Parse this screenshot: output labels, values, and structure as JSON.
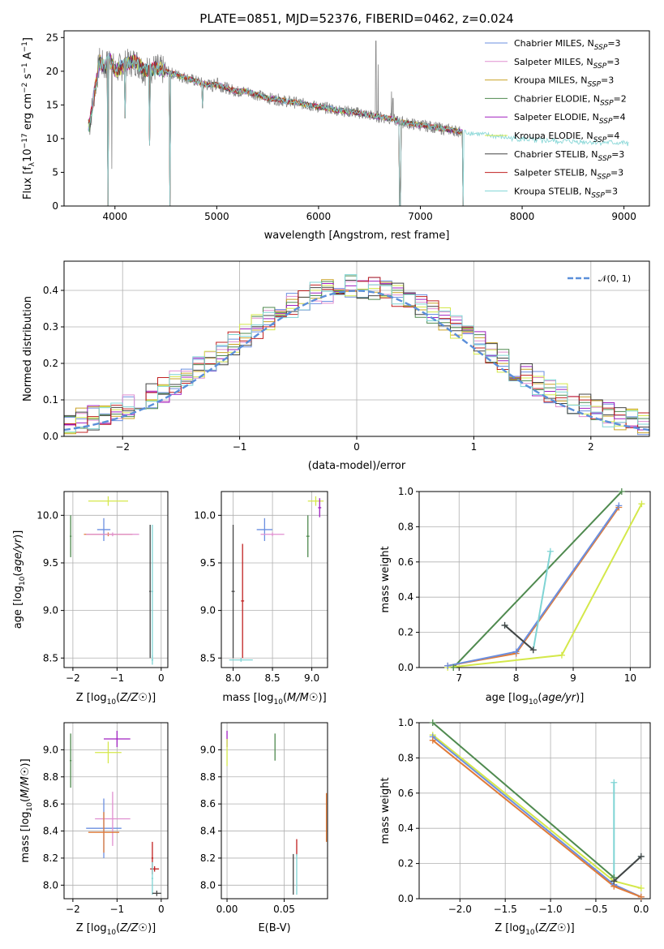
{
  "chart_data": [
    {
      "type": "line",
      "id": "spectrum",
      "title": "PLATE=0851, MJD=52376, FIBERID=0462, z=0.024",
      "xlabel": "wavelength [Angstrom, rest frame]",
      "ylabel_parts": [
        "Flux [f",
        "λ",
        "10",
        "−17",
        " erg cm",
        "−2",
        " s",
        "−1",
        " A",
        "−1",
        "]"
      ],
      "xlim": [
        3500,
        9250
      ],
      "ylim": [
        0,
        26
      ],
      "xticks": [
        4000,
        5000,
        6000,
        7000,
        8000,
        9000
      ],
      "yticks": [
        0,
        5,
        10,
        15,
        20,
        25
      ],
      "grid": false,
      "legend_position": "top-right",
      "series": [
        {
          "name": "Chabrier MILES, N",
          "sub": "SSP",
          "suffix": "=3",
          "color": "#6b8fe0",
          "range": [
            3740,
            7420
          ]
        },
        {
          "name": "Salpeter MILES, N",
          "sub": "SSP",
          "suffix": "=3",
          "color": "#e08fd0",
          "range": [
            3740,
            7420
          ]
        },
        {
          "name": "Kroupa MILES, N",
          "sub": "SSP",
          "suffix": "=3",
          "color": "#c9a227",
          "range": [
            3740,
            7420
          ]
        },
        {
          "name": "Chabrier ELODIE, N",
          "sub": "SSP",
          "suffix": "=2",
          "color": "#4f8a4f",
          "range": [
            3740,
            7420
          ]
        },
        {
          "name": "Salpeter ELODIE, N",
          "sub": "SSP",
          "suffix": "=4",
          "color": "#a020c0",
          "range": [
            3740,
            7420
          ]
        },
        {
          "name": "Kroupa ELODIE, N",
          "sub": "SSP",
          "suffix": "=4",
          "color": "#d4e84a",
          "range": [
            3740,
            7420
          ]
        },
        {
          "name": "Chabrier STELIB, N",
          "sub": "SSP",
          "suffix": "=3",
          "color": "#444444",
          "range": [
            3740,
            7420
          ]
        },
        {
          "name": "Salpeter STELIB, N",
          "sub": "SSP",
          "suffix": "=3",
          "color": "#c02020",
          "range": [
            3740,
            7420
          ]
        },
        {
          "name": "Kroupa STELIB, N",
          "sub": "SSP",
          "suffix": "=3",
          "color": "#7fd4d4",
          "range": [
            3740,
            9050
          ]
        }
      ],
      "model_continuum": [
        [
          3750,
          12
        ],
        [
          3800,
          17
        ],
        [
          3850,
          21.5
        ],
        [
          3900,
          20.5
        ],
        [
          3950,
          22
        ],
        [
          4000,
          20
        ],
        [
          4100,
          21
        ],
        [
          4200,
          21.5
        ],
        [
          4300,
          20
        ],
        [
          4400,
          20.5
        ],
        [
          4500,
          20
        ],
        [
          4600,
          19.5
        ],
        [
          4700,
          19
        ],
        [
          4800,
          18.5
        ],
        [
          4900,
          18
        ],
        [
          5000,
          18
        ],
        [
          5100,
          17.5
        ],
        [
          5200,
          17
        ],
        [
          5300,
          17
        ],
        [
          5400,
          16.5
        ],
        [
          5500,
          16
        ],
        [
          5600,
          15.8
        ],
        [
          5700,
          15.5
        ],
        [
          5800,
          15.3
        ],
        [
          5900,
          15
        ],
        [
          6000,
          14.7
        ],
        [
          6100,
          14.5
        ],
        [
          6200,
          14.2
        ],
        [
          6300,
          14
        ],
        [
          6400,
          13.8
        ],
        [
          6500,
          13.5
        ],
        [
          6600,
          13.2
        ],
        [
          6700,
          13
        ],
        [
          6800,
          12.5
        ],
        [
          6900,
          12.2
        ],
        [
          7000,
          12
        ],
        [
          7100,
          11.8
        ],
        [
          7200,
          11.5
        ],
        [
          7300,
          11.3
        ],
        [
          7400,
          11
        ],
        [
          7500,
          10.8
        ],
        [
          7600,
          10.6
        ],
        [
          7700,
          10.4
        ],
        [
          7800,
          10.2
        ],
        [
          7900,
          10
        ],
        [
          8000,
          9.9
        ],
        [
          8200,
          9.7
        ],
        [
          8400,
          9.6
        ],
        [
          8600,
          9.5
        ],
        [
          8800,
          9.4
        ],
        [
          9050,
          9.3
        ]
      ],
      "model_dips": [
        [
          3934,
          0
        ],
        [
          4102,
          13
        ],
        [
          4340,
          9
        ],
        [
          4540,
          0
        ],
        [
          4861,
          14.5
        ],
        [
          6800,
          0
        ],
        [
          7420,
          0
        ]
      ],
      "data_spikes": [
        [
          3932,
          2
        ],
        [
          3968,
          5.5
        ],
        [
          6563,
          24.5
        ],
        [
          6584,
          21
        ],
        [
          5007,
          19
        ],
        [
          4959,
          17
        ],
        [
          6717,
          17
        ],
        [
          6731,
          16
        ]
      ]
    },
    {
      "type": "histogram",
      "id": "residuals",
      "xlabel": "(data-model)/error",
      "ylabel": "Normed distribution",
      "xlim": [
        -2.5,
        2.5
      ],
      "ylim": [
        0,
        0.48
      ],
      "xticks": [
        -2,
        -1,
        0,
        1,
        2
      ],
      "yticks": [
        0.0,
        0.1,
        0.2,
        0.3,
        0.4
      ],
      "grid": true,
      "legend_position": "top-right",
      "legend_label": "𝒩(0, 1)",
      "bin_width": 0.1,
      "bin_start": -2.5,
      "base_values": [
        0.04,
        0.06,
        0.07,
        0.09,
        0.08,
        0.1,
        0.09,
        0.11,
        0.1,
        0.12,
        0.14,
        0.16,
        0.17,
        0.19,
        0.2,
        0.23,
        0.22,
        0.27,
        0.3,
        0.29,
        0.28,
        0.3,
        0.33,
        0.34,
        0.36,
        0.35,
        0.37,
        0.39,
        0.38,
        0.4,
        0.41,
        0.39,
        0.42,
        0.4,
        0.38,
        0.4,
        0.37,
        0.39,
        0.35,
        0.32,
        0.3,
        0.28,
        0.27,
        0.24,
        0.21,
        0.2,
        0.19,
        0.17,
        0.15,
        0.14,
        0.12,
        0.11,
        0.1,
        0.09,
        0.08,
        0.07,
        0.06,
        0.05,
        0.04,
        0.03,
        0.04,
        0.03,
        0.02,
        0.02,
        0.03,
        0.02,
        0.01,
        0.02,
        0.01,
        0.01,
        0.01,
        0.01,
        0.01,
        0.01,
        0.01,
        0.01,
        0.01,
        0.01,
        0.01,
        0.01,
        0.01,
        0.01,
        0.01,
        0.01,
        0.01,
        0.01,
        0.01,
        0.01,
        0.01,
        0.01,
        0.01,
        0.01,
        0.01,
        0.01,
        0.01,
        0.01,
        0.01,
        0.01,
        0.01,
        0.01
      ],
      "normal_curve": {
        "mean": 0,
        "sigma": 1,
        "color": "#5b8fd9"
      }
    },
    {
      "type": "scatter",
      "id": "age-vs-Z",
      "xlabel": "Z [log10(Z/Z☉)]",
      "ylabel": "age  [log10(age/yr)]",
      "xlim": [
        -2.2,
        0.15
      ],
      "ylim": [
        8.4,
        10.25
      ],
      "xticks": [
        -2,
        -1,
        0
      ],
      "yticks": [
        8.5,
        9.0,
        9.5,
        10.0
      ],
      "grid": true,
      "points": [
        {
          "x": -1.2,
          "xerr": 0.45,
          "y": 10.15,
          "yerr": 0.05,
          "c": "#d4e84a"
        },
        {
          "x": -1.3,
          "xerr": 0.15,
          "y": 9.85,
          "yerr": 0.12,
          "c": "#6b8fe0"
        },
        {
          "x": -2.05,
          "xerr": 0.02,
          "y": 9.78,
          "yerr": 0.22,
          "c": "#4f8a4f"
        },
        {
          "x": -1.2,
          "xerr": 0.55,
          "y": 9.8,
          "yerr": 0.02,
          "c": "#e07b39"
        },
        {
          "x": -1.1,
          "xerr": 0.6,
          "y": 9.8,
          "yerr": 0.02,
          "c": "#e08fd0"
        },
        {
          "x": -0.2,
          "xerr": 0.02,
          "y": 8.48,
          "yerr": 0.05,
          "c": "#7fd4d4"
        },
        {
          "x": -0.25,
          "xerr": 0.02,
          "y": 9.2,
          "yerr": 0.7,
          "c": "#444444"
        },
        {
          "x": -0.2,
          "xerr": 0.02,
          "y": 9.2,
          "yerr": 0.7,
          "c": "#7fd4d4"
        }
      ]
    },
    {
      "type": "scatter",
      "id": "age-vs-mass",
      "xlabel": "mass [log10(M/M☉)]",
      "ylabel": "",
      "xlim": [
        7.85,
        9.2
      ],
      "ylim": [
        8.4,
        10.25
      ],
      "xticks": [
        8.0,
        8.5,
        9.0
      ],
      "yticks": [
        8.5,
        9.0,
        9.5,
        10.0
      ],
      "grid": true,
      "points": [
        {
          "x": 9.05,
          "xerr": 0.1,
          "y": 10.15,
          "yerr": 0.05,
          "c": "#d4e84a"
        },
        {
          "x": 9.1,
          "xerr": 0.02,
          "y": 10.08,
          "yerr": 0.1,
          "c": "#a020c0"
        },
        {
          "x": 8.4,
          "xerr": 0.1,
          "y": 9.85,
          "yerr": 0.12,
          "c": "#6b8fe0"
        },
        {
          "x": 8.5,
          "xerr": 0.15,
          "y": 9.8,
          "yerr": 0.02,
          "c": "#e08fd0"
        },
        {
          "x": 8.95,
          "xerr": 0.02,
          "y": 9.78,
          "yerr": 0.22,
          "c": "#4f8a4f"
        },
        {
          "x": 8.0,
          "xerr": 0.02,
          "y": 9.2,
          "yerr": 0.7,
          "c": "#444444"
        },
        {
          "x": 8.12,
          "xerr": 0.02,
          "y": 9.1,
          "yerr": 0.6,
          "c": "#c02020"
        },
        {
          "x": 8.1,
          "xerr": 0.15,
          "y": 8.48,
          "yerr": 0.02,
          "c": "#7fd4d4"
        }
      ]
    },
    {
      "type": "line",
      "id": "mass-weight-vs-age",
      "xlabel": "age  [log10(age/yr)]",
      "ylabel": "mass weight",
      "xlim": [
        6.3,
        10.35
      ],
      "ylim": [
        0,
        1.0
      ],
      "xticks": [
        7,
        8,
        9,
        10
      ],
      "yticks": [
        0.0,
        0.2,
        0.4,
        0.6,
        0.8,
        1.0
      ],
      "grid": true,
      "series": [
        {
          "c": "#4f8a4f",
          "x": [
            6.9,
            9.85
          ],
          "y": [
            0.0,
            1.0
          ]
        },
        {
          "c": "#d4e84a",
          "x": [
            6.8,
            8.8,
            10.2
          ],
          "y": [
            0.0,
            0.07,
            0.93
          ]
        },
        {
          "c": "#e07b39",
          "x": [
            6.8,
            8.0,
            9.8
          ],
          "y": [
            0.01,
            0.08,
            0.91
          ]
        },
        {
          "c": "#6b8fe0",
          "x": [
            6.8,
            8.0,
            9.8
          ],
          "y": [
            0.01,
            0.09,
            0.92
          ]
        },
        {
          "c": "#7fd4d4",
          "x": [
            7.8,
            8.3,
            8.6
          ],
          "y": [
            0.24,
            0.1,
            0.66
          ]
        },
        {
          "c": "#444444",
          "x": [
            7.8,
            8.3
          ],
          "y": [
            0.24,
            0.1
          ]
        }
      ]
    },
    {
      "type": "scatter",
      "id": "mass-vs-Z",
      "xlabel": "Z [log10(Z/Z☉)]",
      "ylabel": "mass [log10(M/M☉)]",
      "xlim": [
        -2.2,
        0.15
      ],
      "ylim": [
        7.9,
        9.2
      ],
      "xticks": [
        -2,
        -1,
        0
      ],
      "yticks": [
        8.0,
        8.2,
        8.4,
        8.6,
        8.8,
        9.0
      ],
      "grid": true,
      "points": [
        {
          "x": -1.0,
          "xerr": 0.3,
          "y": 9.08,
          "yerr": 0.06,
          "c": "#a020c0"
        },
        {
          "x": -1.2,
          "xerr": 0.3,
          "y": 8.98,
          "yerr": 0.08,
          "c": "#d4e84a"
        },
        {
          "x": -2.05,
          "xerr": 0.02,
          "y": 8.92,
          "yerr": 0.2,
          "c": "#4f8a4f"
        },
        {
          "x": -1.3,
          "xerr": 0.4,
          "y": 8.42,
          "yerr": 0.22,
          "c": "#6b8fe0"
        },
        {
          "x": -1.1,
          "xerr": 0.4,
          "y": 8.49,
          "yerr": 0.2,
          "c": "#e08fd0"
        },
        {
          "x": -1.3,
          "xerr": 0.35,
          "y": 8.39,
          "yerr": 0.15,
          "c": "#e07b39"
        },
        {
          "x": -0.2,
          "xerr": 0.02,
          "y": 8.2,
          "yerr": 0.12,
          "c": "#c02020"
        },
        {
          "x": -0.15,
          "xerr": 0.1,
          "y": 8.12,
          "yerr": 0.02,
          "c": "#c02020"
        },
        {
          "x": -0.2,
          "xerr": 0.02,
          "y": 8.05,
          "yerr": 0.12,
          "c": "#7fd4d4"
        },
        {
          "x": -0.1,
          "xerr": 0.1,
          "y": 7.94,
          "yerr": 0.02,
          "c": "#444444"
        }
      ]
    },
    {
      "type": "scatter",
      "id": "mass-vs-EBV",
      "xlabel": "E(B-V)",
      "ylabel": "",
      "xlim": [
        -0.005,
        0.088
      ],
      "ylim": [
        7.9,
        9.2
      ],
      "xticks": [
        0.0,
        0.05
      ],
      "yticks": [
        8.0,
        8.2,
        8.4,
        8.6,
        8.8,
        9.0
      ],
      "grid": true,
      "points": [
        {
          "x": 0.0,
          "xerr": 0.0,
          "y": 9.08,
          "yerr": 0.06,
          "c": "#a020c0"
        },
        {
          "x": 0.0,
          "xerr": 0.0,
          "y": 8.98,
          "yerr": 0.1,
          "c": "#d4e84a"
        },
        {
          "x": 0.042,
          "xerr": 0.0,
          "y": 9.02,
          "yerr": 0.1,
          "c": "#4f8a4f"
        },
        {
          "x": 0.087,
          "xerr": 0.0,
          "y": 8.5,
          "yerr": 0.18,
          "c": "#e07b39"
        },
        {
          "x": 0.061,
          "xerr": 0.0,
          "y": 8.28,
          "yerr": 0.06,
          "c": "#c02020"
        },
        {
          "x": 0.058,
          "xerr": 0.0,
          "y": 8.08,
          "yerr": 0.15,
          "c": "#444444"
        },
        {
          "x": 0.061,
          "xerr": 0.0,
          "y": 8.08,
          "yerr": 0.15,
          "c": "#7fd4d4"
        }
      ]
    },
    {
      "type": "line",
      "id": "mass-weight-vs-Z",
      "xlabel": "Z [log10(Z/Z☉)]",
      "ylabel": "mass weight",
      "xlim": [
        -2.45,
        0.1
      ],
      "ylim": [
        0,
        1.0
      ],
      "xticks": [
        -2.0,
        -1.5,
        -1.0,
        -0.5,
        0.0
      ],
      "yticks": [
        0.0,
        0.2,
        0.4,
        0.6,
        0.8,
        1.0
      ],
      "grid": true,
      "series": [
        {
          "c": "#4f8a4f",
          "x": [
            -2.3,
            -0.3
          ],
          "y": [
            1.0,
            0.12
          ]
        },
        {
          "c": "#d4e84a",
          "x": [
            -2.3,
            -0.3,
            0.0
          ],
          "y": [
            0.93,
            0.1,
            0.06
          ]
        },
        {
          "c": "#6b8fe0",
          "x": [
            -2.3,
            -0.3,
            0.0
          ],
          "y": [
            0.92,
            0.08,
            0.01
          ]
        },
        {
          "c": "#e07b39",
          "x": [
            -2.3,
            -0.3,
            0.0
          ],
          "y": [
            0.9,
            0.07,
            0.01
          ]
        },
        {
          "c": "#7fd4d4",
          "x": [
            -0.3,
            -0.3,
            0.0
          ],
          "y": [
            0.66,
            0.1,
            0.24
          ]
        },
        {
          "c": "#444444",
          "x": [
            -0.3,
            0.0
          ],
          "y": [
            0.1,
            0.24
          ]
        }
      ]
    }
  ]
}
